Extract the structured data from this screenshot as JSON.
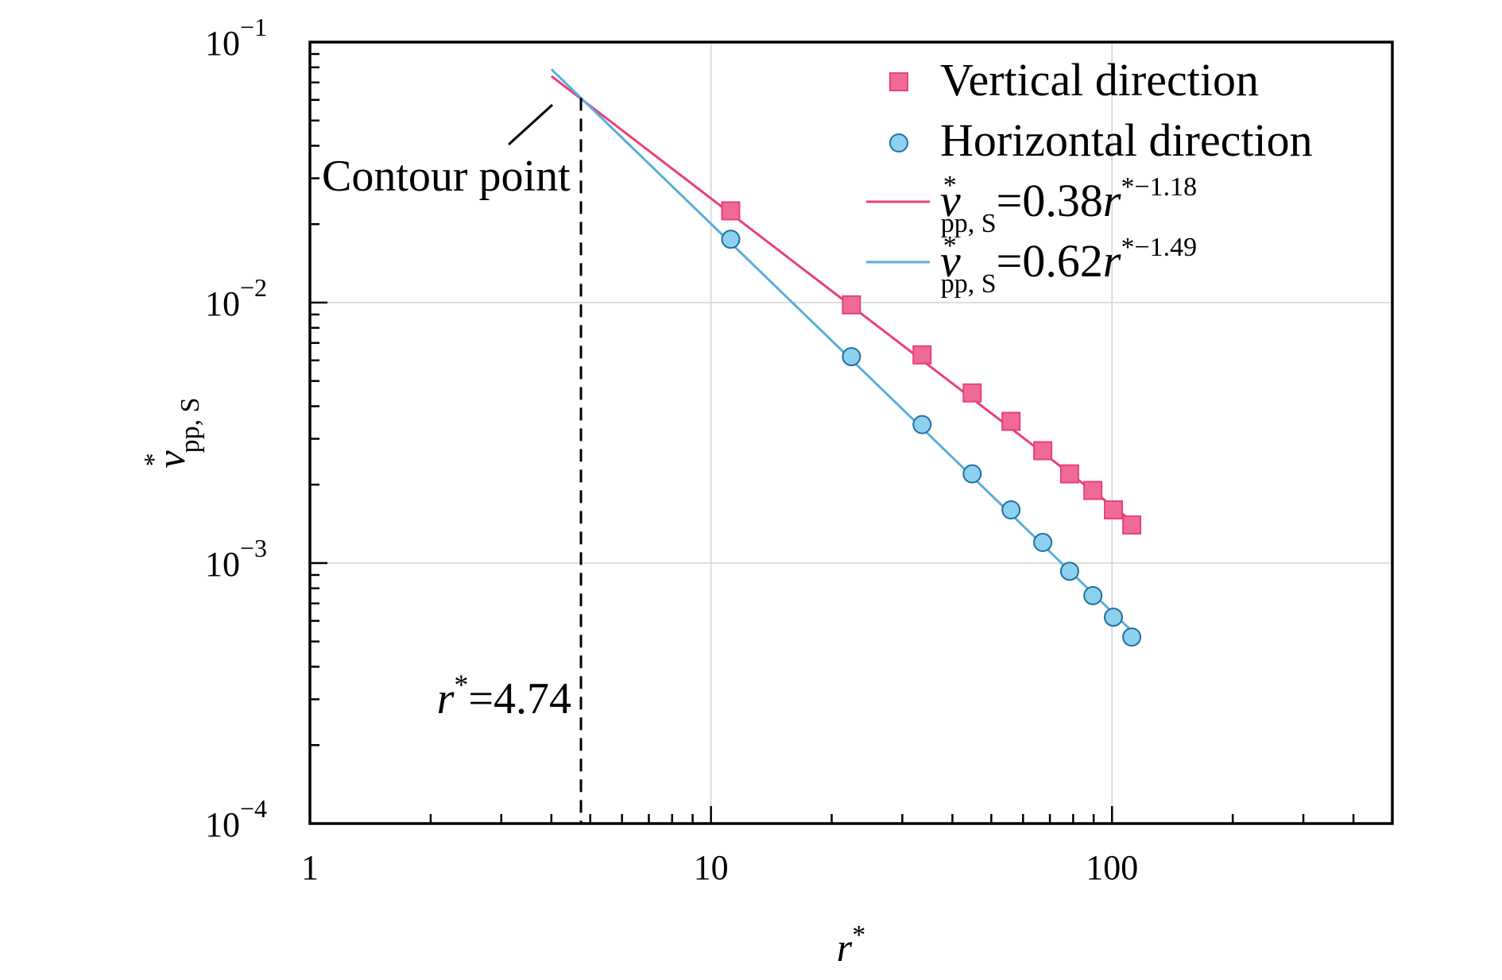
{
  "chart_data": {
    "type": "scatter",
    "x_scale": "log",
    "y_scale": "log",
    "xlim": [
      1,
      500
    ],
    "ylim": [
      0.0001,
      0.1
    ],
    "grid": true,
    "legend_position": "top-right",
    "xlabel": {
      "base": "r",
      "sup": "*"
    },
    "ylabel": {
      "base": "v",
      "sup": "*",
      "sub": "pp, S"
    },
    "x_ticks": [
      {
        "value": 1,
        "label": "1"
      },
      {
        "value": 10,
        "label": "10"
      },
      {
        "value": 100,
        "label": "100"
      }
    ],
    "y_ticks": [
      {
        "value": 0.1,
        "base": "10",
        "exp": "−1"
      },
      {
        "value": 0.01,
        "base": "10",
        "exp": "−2"
      },
      {
        "value": 0.001,
        "base": "10",
        "exp": "−3"
      },
      {
        "value": 0.0001,
        "base": "10",
        "exp": "−4"
      }
    ],
    "series": [
      {
        "name": "Vertical direction",
        "marker": "square",
        "color": "#e8417a",
        "fill": "#f06a98",
        "x": [
          11.2,
          22.4,
          33.6,
          44.8,
          56.0,
          67.2,
          78.4,
          89.6,
          100.8,
          112.0
        ],
        "y": [
          0.0225,
          0.0098,
          0.0063,
          0.0045,
          0.0035,
          0.0027,
          0.0022,
          0.0019,
          0.0016,
          0.0014
        ]
      },
      {
        "name": "Horizontal direction",
        "marker": "circle",
        "color": "#3b8fc4",
        "fill": "#8ed1ee",
        "x": [
          11.2,
          22.4,
          33.6,
          44.8,
          56.0,
          67.2,
          78.4,
          89.6,
          100.8,
          112.0
        ],
        "y": [
          0.0175,
          0.0062,
          0.0034,
          0.0022,
          0.0016,
          0.0012,
          0.00093,
          0.00075,
          0.00062,
          0.00052
        ]
      }
    ],
    "fits": [
      {
        "label_lhs_base": "v",
        "label_lhs_sup": "*",
        "label_lhs_sub": "pp, S",
        "label_rhs": "=0.38",
        "label_var": "r",
        "label_exp": "*−1.18",
        "coef": 0.38,
        "exponent": -1.18,
        "x_range": [
          4,
          112
        ],
        "color": "#e8417a"
      },
      {
        "label_lhs_base": "v",
        "label_lhs_sup": "*",
        "label_lhs_sub": "pp, S",
        "label_rhs": "=0.62",
        "label_var": "r",
        "label_exp": "*−1.49",
        "coef": 0.62,
        "exponent": -1.49,
        "x_range": [
          4,
          112
        ],
        "color": "#5aaedc"
      }
    ],
    "annotations": {
      "contour_point": {
        "text": "Contour point"
      },
      "threshold": {
        "value": 4.74,
        "var": "r",
        "sup": "*",
        "text": "=4.74"
      }
    }
  }
}
